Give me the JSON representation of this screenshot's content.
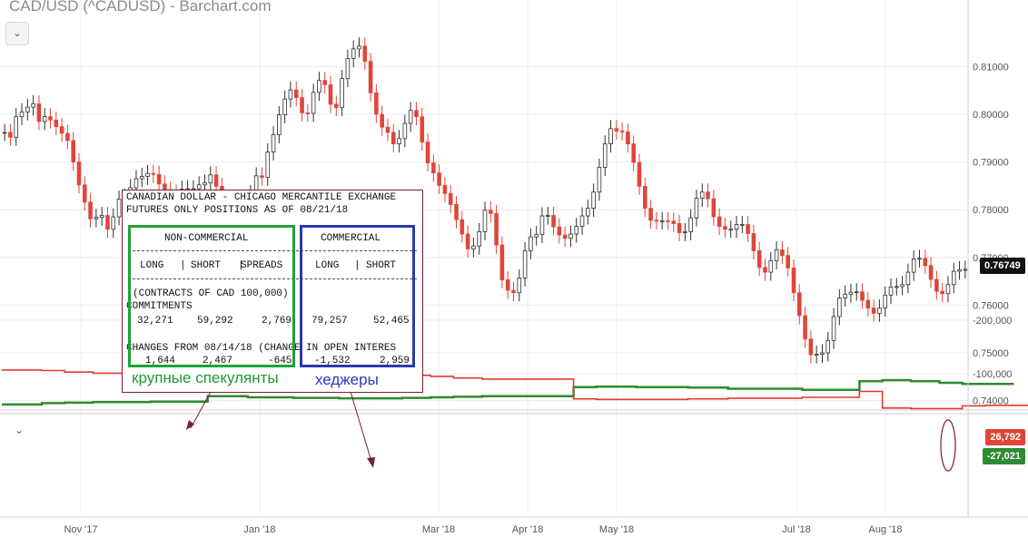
{
  "title": "CAD/USD (^CADUSD) - Barchart.com",
  "toggle_icon": "chevron-down-icon",
  "colors": {
    "down": "#e0453a",
    "up": "#2e2e2e",
    "green": "#2e8b34",
    "red": "#de3b34",
    "grid": "#ececec"
  },
  "chart_data": [
    {
      "type": "candlestick",
      "title": "CAD/USD (^CADUSD) - Barchart.com",
      "x_ticks": [
        "Nov '17",
        "Jan '18",
        "Mar '18",
        "Apr '18",
        "May '18",
        "Jul '18",
        "Aug '18"
      ],
      "y_ticks": [
        "0.81000",
        "0.80000",
        "0.79000",
        "0.78000",
        "0.77000",
        "0.76000",
        "0.75000",
        "0.74000"
      ],
      "ylim": [
        0.7365,
        0.8175
      ],
      "last_price": "0.76749",
      "closes": [
        0.7962,
        0.7952,
        0.7995,
        0.8005,
        0.8015,
        0.8022,
        0.7985,
        0.7995,
        0.7988,
        0.7974,
        0.796,
        0.7945,
        0.79,
        0.7852,
        0.7816,
        0.7781,
        0.7784,
        0.7788,
        0.7759,
        0.7785,
        0.7822,
        0.7826,
        0.7846,
        0.7865,
        0.787,
        0.7876,
        0.7874,
        0.7854,
        0.7842,
        0.7835,
        0.7833,
        0.7843,
        0.7844,
        0.7844,
        0.7852,
        0.7856,
        0.7873,
        0.7849,
        0.7819,
        0.7789,
        0.7768,
        0.7754,
        0.7793,
        0.7834,
        0.7871,
        0.7868,
        0.7921,
        0.7957,
        0.7999,
        0.8032,
        0.8051,
        0.8035,
        0.8003,
        0.8002,
        0.8046,
        0.8071,
        0.8062,
        0.8021,
        0.8014,
        0.8075,
        0.8117,
        0.8137,
        0.8143,
        0.8111,
        0.8045,
        0.8,
        0.7973,
        0.7962,
        0.7938,
        0.7949,
        0.7981,
        0.8008,
        0.7995,
        0.7942,
        0.7898,
        0.7877,
        0.7851,
        0.7834,
        0.7811,
        0.7779,
        0.7749,
        0.7718,
        0.7724,
        0.7754,
        0.7799,
        0.7792,
        0.7726,
        0.7653,
        0.7631,
        0.7626,
        0.7657,
        0.7714,
        0.7743,
        0.7748,
        0.7787,
        0.7788,
        0.7764,
        0.7747,
        0.774,
        0.7749,
        0.7765,
        0.7787,
        0.7803,
        0.7837,
        0.7889,
        0.7938,
        0.797,
        0.7965,
        0.7963,
        0.7938,
        0.7899,
        0.7849,
        0.7803,
        0.7778,
        0.7777,
        0.7777,
        0.7776,
        0.7771,
        0.7752,
        0.7754,
        0.7783,
        0.7824,
        0.7837,
        0.7823,
        0.7785,
        0.7765,
        0.7759,
        0.7759,
        0.7769,
        0.7769,
        0.775,
        0.7714,
        0.7679,
        0.7669,
        0.7693,
        0.7716,
        0.7704,
        0.7678,
        0.7626,
        0.7578,
        0.7529,
        0.7496,
        0.7497,
        0.75,
        0.7526,
        0.7576,
        0.7615,
        0.7623,
        0.7627,
        0.7628,
        0.761,
        0.7594,
        0.7583,
        0.7594,
        0.7621,
        0.7638,
        0.7639,
        0.7643,
        0.7669,
        0.7697,
        0.7698,
        0.7683,
        0.7654,
        0.7629,
        0.7624,
        0.7643,
        0.7671,
        0.7674,
        0.7675
      ]
    },
    {
      "type": "line",
      "series": [
        {
          "color": "#2e8b34",
          "values": [
            -42500,
            -42500,
            -42500,
            -42500,
            -42500,
            -42500,
            -42500,
            -45000,
            -45000,
            -45000,
            -45000,
            -46000,
            -46000,
            -46000,
            -46000,
            -46000,
            -47000,
            -47000,
            -47000,
            -47000,
            -47000,
            -47000,
            -47000,
            -47000,
            -47000,
            -47000,
            -48000,
            -48000,
            -48000,
            -48000,
            -48000,
            -48000,
            -48000,
            -48000,
            -48000,
            -48000,
            -58000,
            -58000,
            -58000,
            -58000,
            -58000,
            -58000,
            -58000,
            -56000,
            -56000,
            -56000,
            -56000,
            -56000,
            -56000,
            -56000,
            -56000,
            -55000,
            -55000,
            -55000,
            -55000,
            -55000,
            -55000,
            -55000,
            -55000,
            -54000,
            -54000,
            -54000,
            -54000,
            -54000,
            -54000,
            -54000,
            -54000,
            -54000,
            -54000,
            -54000,
            -55000,
            -55000,
            -55000,
            -55000,
            -55000,
            -56000,
            -56000,
            -56000,
            -56000,
            -57000,
            -57000,
            -57000,
            -57000,
            -57000,
            -58000,
            -58000,
            -58000,
            -58000,
            -58000,
            -58000,
            -58000,
            -58000,
            -58000,
            -58000,
            -58000,
            -58000,
            -58000,
            -58000,
            -58000,
            -58000,
            -75000,
            -75000,
            -75000,
            -75000,
            -76000,
            -76000,
            -76000,
            -76000,
            -76000,
            -76000,
            -76000,
            -75000,
            -75000,
            -75000,
            -75000,
            -75000,
            -75000,
            -75000,
            -75000,
            -75000,
            -74000,
            -74000,
            -74000,
            -74000,
            -74000,
            -74000,
            -74000,
            -72000,
            -72000,
            -72000,
            -72000,
            -72000,
            -72000,
            -72000,
            -72000,
            -72000,
            -72000,
            -72000,
            -72000,
            -72000,
            -70000,
            -70000,
            -70000,
            -70000,
            -70000,
            -70000,
            -70000,
            -70000,
            -70000,
            -70000,
            -86000,
            -86000,
            -86000,
            -86000,
            -88000,
            -88000,
            -88000,
            -88000,
            -88000,
            -86000,
            -86000,
            -86000,
            -86000,
            -86000,
            -83000,
            -83000,
            -83000,
            -83000,
            -81000,
            -81000,
            -81000,
            -81000,
            -81000,
            -81000,
            -81000,
            -81000,
            -81000
          ]
        },
        {
          "color": "#de3b34",
          "values": [
            -107000,
            -107000,
            -107000,
            -107000,
            -107000,
            -107000,
            -107000,
            -106000,
            -106000,
            -106000,
            -106000,
            -103000,
            -103000,
            -103000,
            -103000,
            -103000,
            -101000,
            -101000,
            -101000,
            -101000,
            -101000,
            -100000,
            -100000,
            -100000,
            -100000,
            -100000,
            -99000,
            -99000,
            -99000,
            -99000,
            -99000,
            -99000,
            -99000,
            -99000,
            -99000,
            -99000,
            -95000,
            -95000,
            -95000,
            -95000,
            -95000,
            -95000,
            -95000,
            -93000,
            -93000,
            -93000,
            -93000,
            -93000,
            -93000,
            -93000,
            -93000,
            -96000,
            -96000,
            -96000,
            -96000,
            -96000,
            -96000,
            -96000,
            -96000,
            -98000,
            -98000,
            -98000,
            -98000,
            -98000,
            -98000,
            -100000,
            -100000,
            -100000,
            -100000,
            -100000,
            -100000,
            -97000,
            -97000,
            -97000,
            -97000,
            -95000,
            -95000,
            -95000,
            -95000,
            -92000,
            -92000,
            -92000,
            -92000,
            -92000,
            -90000,
            -90000,
            -90000,
            -90000,
            -90000,
            -90000,
            -90000,
            -90000,
            -90000,
            -90000,
            -90000,
            -90000,
            -90000,
            -90000,
            -90000,
            -90000,
            -53000,
            -53000,
            -53000,
            -53000,
            -52000,
            -52000,
            -52000,
            -52000,
            -52000,
            -52000,
            -52000,
            -52000,
            -52000,
            -52000,
            -52000,
            -52000,
            -52000,
            -52000,
            -52000,
            -52000,
            -53000,
            -53000,
            -53000,
            -53000,
            -53000,
            -53000,
            -53000,
            -54000,
            -54000,
            -54000,
            -54000,
            -54000,
            -54000,
            -54000,
            -54000,
            -54000,
            -54000,
            -54000,
            -54000,
            -54000,
            -56000,
            -56000,
            -56000,
            -56000,
            -56000,
            -56000,
            -56000,
            -56000,
            -56000,
            -56000,
            -67000,
            -67000,
            -67000,
            -67000,
            -36000,
            -36000,
            -36000,
            -36000,
            -36000,
            -35000,
            -35000,
            -35000,
            -35000,
            -35000,
            -35000,
            -35000,
            -35000,
            -35000,
            -40000,
            -40000,
            -40000,
            -40000,
            -41000,
            -41000,
            -41000,
            -41000,
            -41000,
            -41000,
            -41000,
            -41000,
            -41000
          ]
        }
      ],
      "y_ticks": [
        "-100,000",
        "-200,000"
      ],
      "ylim": [
        -232000,
        0
      ],
      "badges": [
        {
          "text": "26,792",
          "color": "#e0453a"
        },
        {
          "text": "-27,021",
          "color": "#2e8b34"
        }
      ]
    }
  ],
  "cot": {
    "header1": "CANADIAN DOLLAR - CHICAGO MERCANTILE EXCHANGE",
    "header2": "FUTURES ONLY POSITIONS AS OF 08/21/18",
    "noncom_label": "NON-COMMERCIAL",
    "com_label": "COMMERCIAL",
    "col_long": "LONG",
    "col_short": "SHORT",
    "col_spreads": "SPREADS",
    "sep": "|",
    "contracts": "(CONTRACTS OF CAD 100,000)",
    "commitments": "COMMITMENTS",
    "commit_vals": [
      "32,271",
      "59,292",
      "2,769",
      "79,257",
      "52,465"
    ],
    "changes": "CHANGES FROM 08/14/18 (CHANGE IN OPEN INTERES",
    "change_vals": [
      "1,644",
      "2,467",
      "-645",
      "-1,532",
      "2,959"
    ]
  },
  "annotations": {
    "speculators": "крупные спекулянты",
    "hedgers": "хеджеры"
  }
}
